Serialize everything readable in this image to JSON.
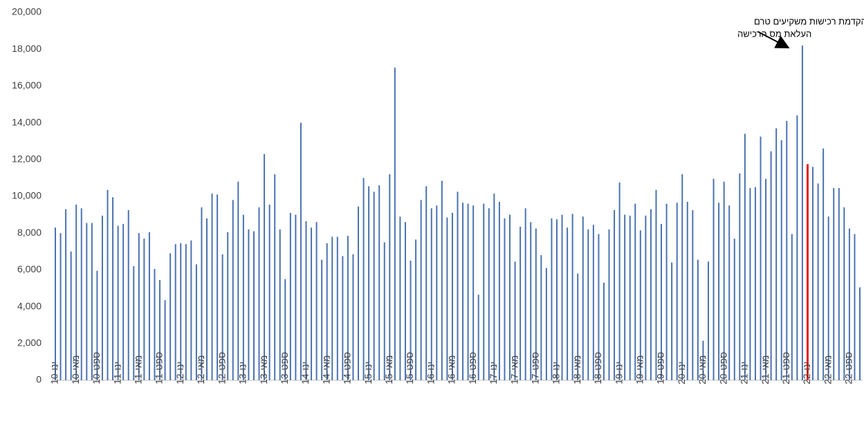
{
  "chart_data": {
    "type": "bar",
    "annotation": [
      "שיא בעסקאות על רקע הקדמת רכישות משקיעים טרם",
      "העלאת מס הרכישה"
    ],
    "categories": [
      "ינו-10",
      null,
      null,
      null,
      "מאי-10",
      null,
      null,
      null,
      "ספט-10",
      null,
      null,
      null,
      "ינו-11",
      null,
      null,
      null,
      "מאי-11",
      null,
      null,
      null,
      "ספט-11",
      null,
      null,
      null,
      "ינו-12",
      null,
      null,
      null,
      "מאי-12",
      null,
      null,
      null,
      "ספט-12",
      null,
      null,
      null,
      "ינו-13",
      null,
      null,
      null,
      "מאי-13",
      null,
      null,
      null,
      "ספט-13",
      null,
      null,
      null,
      "ינו-14",
      null,
      null,
      null,
      "מאי-14",
      null,
      null,
      null,
      "ספט-14",
      null,
      null,
      null,
      "ינו-15",
      null,
      null,
      null,
      "מאי-15",
      null,
      null,
      null,
      "ספט-15",
      null,
      null,
      null,
      "ינו-16",
      null,
      null,
      null,
      "מאי-16",
      null,
      null,
      null,
      "ספט-16",
      null,
      null,
      null,
      "ינו-17",
      null,
      null,
      null,
      "מאי-17",
      null,
      null,
      null,
      "ספט-17",
      null,
      null,
      null,
      "ינו-18",
      null,
      null,
      null,
      "מאי-18",
      null,
      null,
      null,
      "ספט-18",
      null,
      null,
      null,
      "ינו-19",
      null,
      null,
      null,
      "מאי-19",
      null,
      null,
      null,
      "ספט-19",
      null,
      null,
      null,
      "ינו-20",
      null,
      null,
      null,
      "מאי-20",
      null,
      null,
      null,
      "ספט-20",
      null,
      null,
      null,
      "ינו-21",
      null,
      null,
      null,
      "מאי-21",
      null,
      null,
      null,
      "ספט-21",
      null,
      null,
      null,
      "ינו-22",
      null,
      null,
      null,
      "מאי-22",
      null,
      null,
      null,
      "ספט-22",
      null,
      null
    ],
    "values": [
      8300,
      8000,
      9300,
      7000,
      9550,
      9350,
      8550,
      8550,
      5950,
      8950,
      10350,
      9950,
      8400,
      8500,
      9250,
      6200,
      8000,
      7700,
      8050,
      6050,
      5450,
      4350,
      6900,
      7400,
      7450,
      7400,
      7600,
      6300,
      9400,
      8800,
      10150,
      10100,
      6850,
      8050,
      9800,
      10800,
      9000,
      8200,
      8100,
      9400,
      12300,
      9550,
      11200,
      8200,
      5500,
      9100,
      9000,
      14000,
      8650,
      8300,
      8600,
      6550,
      7450,
      7800,
      7800,
      6750,
      7850,
      6850,
      9450,
      11000,
      10550,
      10250,
      10600,
      7500,
      11200,
      17000,
      8900,
      8600,
      6500,
      7650,
      9800,
      10550,
      9350,
      9500,
      10850,
      8850,
      9100,
      10250,
      9650,
      9600,
      9500,
      4650,
      9600,
      9350,
      10150,
      9700,
      8800,
      9000,
      6450,
      8350,
      9350,
      8600,
      8250,
      6800,
      6100,
      8800,
      8750,
      9000,
      8300,
      9050,
      5800,
      8900,
      8200,
      8450,
      7950,
      5300,
      8200,
      9250,
      10750,
      9000,
      8950,
      9600,
      8150,
      8950,
      9300,
      10350,
      8500,
      9600,
      6400,
      9650,
      11200,
      9700,
      9250,
      6550,
      2150,
      6450,
      10950,
      9650,
      10800,
      9500,
      7700,
      11250,
      13400,
      10450,
      10500,
      13250,
      10950,
      12450,
      13700,
      13050,
      14100,
      7950,
      14400,
      18200,
      11750,
      11600,
      10700,
      12600,
      8900,
      10450,
      10450,
      9400,
      8250,
      7950,
      5050
    ],
    "colors": [
      "#4a72b0",
      "#4a72b0",
      "#4a72b0",
      "#4a72b0",
      "#4a72b0",
      "#4a72b0",
      "#4a72b0",
      "#4a72b0",
      "#4a72b0",
      "#4a72b0",
      "#4a72b0",
      "#4a72b0",
      "#4a72b0",
      "#4a72b0",
      "#4a72b0",
      "#4a72b0",
      "#4a72b0",
      "#4a72b0",
      "#4a72b0",
      "#4a72b0",
      "#4a72b0",
      "#4a72b0",
      "#4a72b0",
      "#4a72b0",
      "#4a72b0",
      "#4a72b0",
      "#4a72b0",
      "#4a72b0",
      "#4a72b0",
      "#4a72b0",
      "#4a72b0",
      "#4a72b0",
      "#4a72b0",
      "#4a72b0",
      "#4a72b0",
      "#4a72b0",
      "#4a72b0",
      "#4a72b0",
      "#4a72b0",
      "#4a72b0",
      "#4a72b0",
      "#4a72b0",
      "#4a72b0",
      "#4a72b0",
      "#4a72b0",
      "#4a72b0",
      "#4a72b0",
      "#4a72b0",
      "#4a72b0",
      "#4a72b0",
      "#4a72b0",
      "#4a72b0",
      "#4a72b0",
      "#4a72b0",
      "#4a72b0",
      "#4a72b0",
      "#4a72b0",
      "#4a72b0",
      "#4a72b0",
      "#4a72b0",
      "#4a72b0",
      "#4a72b0",
      "#4a72b0",
      "#4a72b0",
      "#4a72b0",
      "#4a72b0",
      "#4a72b0",
      "#4a72b0",
      "#4a72b0",
      "#4a72b0",
      "#4a72b0",
      "#4a72b0",
      "#4a72b0",
      "#4a72b0",
      "#4a72b0",
      "#4a72b0",
      "#4a72b0",
      "#4a72b0",
      "#4a72b0",
      "#4a72b0",
      "#4a72b0",
      "#4a72b0",
      "#4a72b0",
      "#4a72b0",
      "#4a72b0",
      "#4a72b0",
      "#4a72b0",
      "#4a72b0",
      "#4a72b0",
      "#4a72b0",
      "#4a72b0",
      "#4a72b0",
      "#4a72b0",
      "#4a72b0",
      "#4a72b0",
      "#4a72b0",
      "#4a72b0",
      "#4a72b0",
      "#4a72b0",
      "#4a72b0",
      "#4a72b0",
      "#4a72b0",
      "#4a72b0",
      "#4a72b0",
      "#4a72b0",
      "#4a72b0",
      "#4a72b0",
      "#4a72b0",
      "#4a72b0",
      "#4a72b0",
      "#4a72b0",
      "#4a72b0",
      "#4a72b0",
      "#4a72b0",
      "#4a72b0",
      "#4a72b0",
      "#4a72b0",
      "#4a72b0",
      "#4a72b0",
      "#4a72b0",
      "#4a72b0",
      "#4a72b0",
      "#4a72b0",
      "#4a72b0",
      "#4a72b0",
      "#4a72b0",
      "#4a72b0",
      "#4a72b0",
      "#4a72b0",
      "#4a72b0",
      "#4a72b0",
      "#4a72b0",
      "#4a72b0",
      "#4a72b0",
      "#4a72b0",
      "#4a72b0",
      "#4a72b0",
      "#4a72b0",
      "#4a72b0",
      "#4a72b0",
      "#4a72b0",
      "#4a72b0",
      "#4a72b0",
      "#4a72b0",
      "#e8191c",
      "#4a72b0",
      "#4a72b0",
      "#4a72b0",
      "#4a72b0",
      "#4a72b0",
      "#4a72b0",
      "#4a72b0",
      "#4a72b0",
      "#4a72b0",
      "#4a72b0"
    ],
    "ylim": [
      0,
      20000
    ],
    "yticks": [
      0,
      {
        "value": 2000,
        "label": "2,000"
      },
      {
        "value": 4000,
        "label": "4,000"
      },
      {
        "value": 6000,
        "label": "6,000"
      },
      {
        "value": 8000,
        "label": "8,000"
      },
      {
        "value": 10000,
        "label": "10,000"
      },
      {
        "value": 12000,
        "label": "12,000"
      },
      {
        "value": 14000,
        "label": "14,000"
      },
      {
        "value": 16000,
        "label": "16,000"
      },
      {
        "value": 18000,
        "label": "18,000"
      },
      {
        "value": 20000,
        "label": "20,000"
      }
    ],
    "grid": false
  }
}
